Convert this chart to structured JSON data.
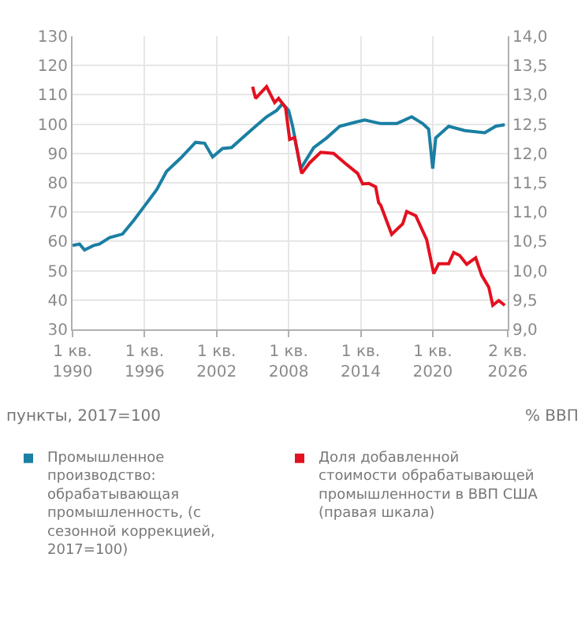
{
  "chart_data": {
    "type": "line",
    "ylabel": "пункты, 2017=100",
    "y2label": "% ВВП",
    "xlim": [
      "1990-01",
      "2026-04"
    ],
    "xticks": [
      {
        "value": "1990-01",
        "label": "1 кв.\n1990"
      },
      {
        "value": "1996-01",
        "label": "1 кв.\n1996"
      },
      {
        "value": "2002-01",
        "label": "1 кв.\n2002"
      },
      {
        "value": "2008-01",
        "label": "1 кв.\n2008"
      },
      {
        "value": "2014-01",
        "label": "1 кв.\n2014"
      },
      {
        "value": "2020-01",
        "label": "1 кв.\n2020"
      },
      {
        "value": "2026-04",
        "label": "2 кв.\n2026"
      }
    ],
    "ylim": [
      30,
      130
    ],
    "yticks": [
      30,
      40,
      50,
      60,
      70,
      80,
      90,
      100,
      110,
      120,
      130
    ],
    "y2lim": [
      9.0,
      14.0
    ],
    "y2ticks": [
      {
        "value": 9.0,
        "label": "9,0"
      },
      {
        "value": 9.5,
        "label": "9,5"
      },
      {
        "value": 10.0,
        "label": "10,0"
      },
      {
        "value": 10.5,
        "label": "10,5"
      },
      {
        "value": 11.0,
        "label": "11,0"
      },
      {
        "value": 11.5,
        "label": "11,5"
      },
      {
        "value": 12.0,
        "label": "12,0"
      },
      {
        "value": 12.5,
        "label": "12,5"
      },
      {
        "value": 13.0,
        "label": "13,0"
      },
      {
        "value": 13.5,
        "label": "13,5"
      },
      {
        "value": 14.0,
        "label": "14,0"
      }
    ],
    "grid": true,
    "legend": "bottom",
    "marker": "none",
    "line_style": "solid",
    "series": [
      {
        "name": "Промышленное производство: обрабатывающая промышленность, (с сезонной коррекцией, 2017=100)",
        "color": "#1b7fa3",
        "x": [
          "1990-01",
          "1990-08",
          "1991-01",
          "1991-10",
          "1992-04",
          "1993-02",
          "1994-03",
          "1995-02",
          "1996-01",
          "1997-01",
          "1997-11",
          "1999-01",
          "2000-04",
          "2001-01",
          "2001-09",
          "2002-07",
          "2003-04",
          "2004-05",
          "2005-04",
          "2006-03",
          "2007-01",
          "2007-07",
          "2008-01",
          "2008-05",
          "2009-01",
          "2010-02",
          "2011-03",
          "2012-04",
          "2013-08",
          "2014-05",
          "2015-09",
          "2017-01",
          "2018-04",
          "2019-03",
          "2019-09",
          "2020-01",
          "2020-04",
          "2021-05",
          "2022-09",
          "2024-05",
          "2025-04",
          "2026-01"
        ],
        "values": [
          58.6,
          59.1,
          57.1,
          58.6,
          59.1,
          61.3,
          62.5,
          67.1,
          72.1,
          77.6,
          83.9,
          88.4,
          93.8,
          93.5,
          88.8,
          91.7,
          92.0,
          96.0,
          99.3,
          102.5,
          104.7,
          107.0,
          104.7,
          99.3,
          84.8,
          92.0,
          95.3,
          99.3,
          100.7,
          101.4,
          100.2,
          100.2,
          102.5,
          100.2,
          98.3,
          84.8,
          95.3,
          99.3,
          97.8,
          97.1,
          99.3,
          99.8
        ]
      },
      {
        "name": "Доля добавленной стоимости обрабатывающей промышленности в ВВП США (правая шкала)",
        "color": "#e3101f",
        "axis": "y2",
        "x": [
          "2005-01",
          "2005-04",
          "2006-03",
          "2006-11",
          "2007-03",
          "2007-10",
          "2008-02",
          "2008-07",
          "2009-02",
          "2009-10",
          "2010-09",
          "2011-10",
          "2012-09",
          "2013-10",
          "2014-03",
          "2014-09",
          "2015-04",
          "2015-07",
          "2015-09",
          "2016-08",
          "2017-07",
          "2017-11",
          "2018-08",
          "2019-07",
          "2020-02",
          "2020-07",
          "2021-05",
          "2021-10",
          "2022-04",
          "2022-11",
          "2023-08",
          "2024-02",
          "2024-09",
          "2025-01",
          "2025-07",
          "2026-01"
        ],
        "values": [
          13.14,
          12.94,
          13.14,
          12.87,
          12.94,
          12.78,
          12.24,
          12.27,
          11.66,
          11.84,
          12.02,
          12.0,
          11.84,
          11.66,
          11.48,
          11.49,
          11.43,
          11.16,
          11.12,
          10.62,
          10.8,
          11.01,
          10.94,
          10.53,
          9.95,
          10.12,
          10.12,
          10.31,
          10.26,
          10.11,
          10.22,
          9.92,
          9.72,
          9.41,
          9.49,
          9.41
        ]
      }
    ]
  }
}
